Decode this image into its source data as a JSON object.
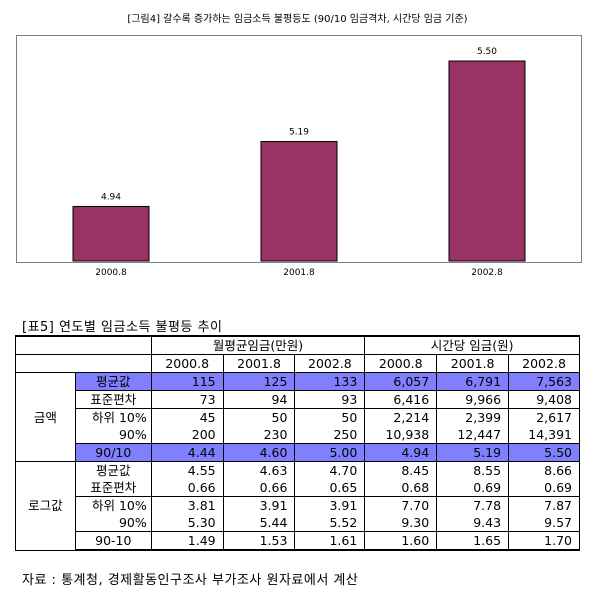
{
  "figure_title": "[그림4] 갈수록 증가하는 임금소득 불평등도 (90/10 임금격차, 시간당 임금 기준)",
  "chart_data": {
    "type": "bar",
    "title": "[그림4] 갈수록 증가하는 임금소득 불평등도 (90/10 임금격차, 시간당 임금 기준)",
    "categories": [
      "2000.8",
      "2001.8",
      "2002.8"
    ],
    "values": [
      4.94,
      5.19,
      5.5
    ],
    "value_labels": [
      "4.94",
      "5.19",
      "5.50"
    ],
    "xlabel": "",
    "ylabel": "",
    "grid": false,
    "legend": "none",
    "bar_color": "#993366"
  },
  "table": {
    "title": "[표5] 연도별 임금소득 불평등 추이",
    "group_headers": [
      "월평균임금(만원)",
      "시간당 임금(원)"
    ],
    "year_headers": [
      "2000.8",
      "2001.8",
      "2002.8",
      "2000.8",
      "2001.8",
      "2002.8"
    ],
    "groups": [
      {
        "label": "금액",
        "rows": [
          {
            "label": "평균값",
            "cells": [
              "115",
              "125",
              "133",
              "6,057",
              "6,791",
              "7,563"
            ]
          },
          {
            "label": "표준편차",
            "cells": [
              "73",
              "94",
              "93",
              "6,416",
              "9,966",
              "9,408"
            ]
          },
          {
            "label": "하위 10%",
            "cells": [
              "45",
              "50",
              "50",
              "2,214",
              "2,399",
              "2,617"
            ]
          },
          {
            "label": "90%",
            "cells": [
              "200",
              "230",
              "250",
              "10,938",
              "12,447",
              "14,391"
            ]
          },
          {
            "label": "90/10",
            "cells": [
              "4.44",
              "4.60",
              "5.00",
              "4.94",
              "5.19",
              "5.50"
            ]
          }
        ]
      },
      {
        "label": "로그값",
        "rows": [
          {
            "label": "평균값",
            "cells": [
              "4.55",
              "4.63",
              "4.70",
              "8.45",
              "8.55",
              "8.66"
            ]
          },
          {
            "label": "표준편차",
            "cells": [
              "0.66",
              "0.66",
              "0.65",
              "0.68",
              "0.69",
              "0.69"
            ]
          },
          {
            "label": "하위 10%",
            "cells": [
              "3.81",
              "3.91",
              "3.91",
              "7.70",
              "7.78",
              "7.87"
            ]
          },
          {
            "label": "90%",
            "cells": [
              "5.30",
              "5.44",
              "5.52",
              "9.30",
              "9.43",
              "9.57"
            ]
          },
          {
            "label": "90-10",
            "cells": [
              "1.49",
              "1.53",
              "1.61",
              "1.60",
              "1.65",
              "1.70"
            ]
          }
        ]
      }
    ],
    "highlight_color": "#8080ff"
  },
  "source": "자료 : 통계청, 경제활동인구조사 부가조사 원자료에서 계산"
}
